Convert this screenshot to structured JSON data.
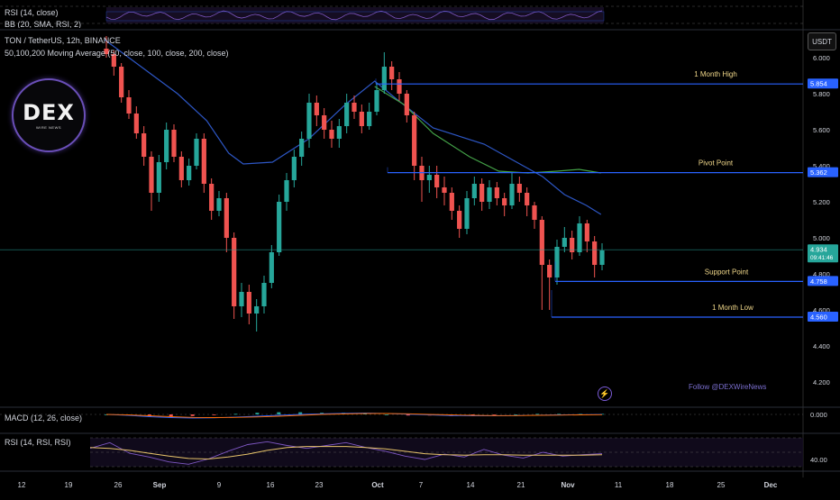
{
  "header": {
    "rsi_top_label": "RSI (14, close)",
    "bb_label": "BB (20, SMA, RSI, 2)",
    "symbol_line": "TON / TetherUS, 12h, BINANCE",
    "ma_line": "50,100,200 Moving Average (50, close, 100, close, 200, close)",
    "unit_button": "USDT"
  },
  "logo": {
    "text": "DEX",
    "subtitle": "WIRE NEWS"
  },
  "watermark": {
    "follow": "Follow @DEXWireNews",
    "bolt_icon": "lightning-bolt-icon"
  },
  "colors": {
    "up": "#26a69a",
    "down": "#ef5350",
    "level_line": "#2962ff",
    "ma_blue": "#2d56c4",
    "ma_green": "#43a047",
    "level_label": "#f0d78a",
    "price_now": "#26a69a"
  },
  "chart_data": [
    {
      "type": "candlestick",
      "title": "TON / TetherUS, 12h, BINANCE",
      "y_axis": {
        "ticks": [
          "6.000",
          "5.800",
          "5.600",
          "5.400",
          "5.200",
          "5.000",
          "4.800",
          "4.600",
          "4.400",
          "4.200"
        ],
        "min": 4.2,
        "max": 6.0
      },
      "x_axis": {
        "ticks": [
          "12",
          "19",
          "26",
          "Sep",
          "9",
          "16",
          "23",
          "Oct",
          "7",
          "14",
          "21",
          "Nov",
          "11",
          "18",
          "25",
          "Dec"
        ]
      },
      "price_tags": [
        {
          "label": "5.854",
          "value": 5.854,
          "color": "#2962ff"
        },
        {
          "label": "5.362",
          "value": 5.362,
          "color": "#2962ff"
        },
        {
          "label": "4.934",
          "sublabel": "09:41:46",
          "value": 4.934,
          "color": "#26a69a"
        },
        {
          "label": "4.758",
          "value": 4.758,
          "color": "#2962ff"
        },
        {
          "label": "4.560",
          "value": 4.56,
          "color": "#2962ff"
        }
      ],
      "levels": [
        {
          "name": "1 Month High",
          "value": 5.854,
          "start": "Sep 29"
        },
        {
          "name": "Pivot Point",
          "value": 5.362,
          "start": "Oct 1"
        },
        {
          "name": "Support Point",
          "value": 4.758,
          "start": "Oct 25"
        },
        {
          "name": "1 Month Low",
          "value": 4.56,
          "start": "Oct 24"
        }
      ],
      "current_price": 4.934,
      "moving_averages": [
        {
          "name": "MA 50",
          "color": "#2d56c4",
          "points": [
            [
              0,
              6.1
            ],
            [
              5,
              5.95
            ],
            [
              10,
              5.8
            ],
            [
              14,
              5.65
            ],
            [
              17,
              5.47
            ],
            [
              19,
              5.41
            ],
            [
              23,
              5.42
            ],
            [
              28,
              5.55
            ],
            [
              33,
              5.74
            ],
            [
              37,
              5.87
            ],
            [
              40,
              5.77
            ],
            [
              45,
              5.61
            ],
            [
              52,
              5.52
            ],
            [
              56,
              5.43
            ],
            [
              60,
              5.34
            ],
            [
              63,
              5.24
            ],
            [
              66,
              5.18
            ],
            [
              68,
              5.13
            ]
          ]
        },
        {
          "name": "MA 100",
          "color": "#43a047",
          "points": [
            [
              37,
              5.84
            ],
            [
              41,
              5.74
            ],
            [
              45,
              5.58
            ],
            [
              50,
              5.45
            ],
            [
              54,
              5.37
            ],
            [
              58,
              5.36
            ],
            [
              62,
              5.37
            ],
            [
              65,
              5.38
            ],
            [
              68,
              5.36
            ]
          ]
        }
      ],
      "candles": [
        [
          6.05,
          6.02,
          6.12,
          6.0
        ],
        [
          6.02,
          5.95,
          6.04,
          5.9
        ],
        [
          5.95,
          5.78,
          5.97,
          5.75
        ],
        [
          5.78,
          5.69,
          5.82,
          5.66
        ],
        [
          5.69,
          5.58,
          5.73,
          5.55
        ],
        [
          5.58,
          5.45,
          5.62,
          5.4
        ],
        [
          5.45,
          5.25,
          5.48,
          5.15
        ],
        [
          5.25,
          5.42,
          5.46,
          5.2
        ],
        [
          5.42,
          5.6,
          5.64,
          5.38
        ],
        [
          5.6,
          5.45,
          5.63,
          5.42
        ],
        [
          5.45,
          5.32,
          5.48,
          5.28
        ],
        [
          5.32,
          5.4,
          5.44,
          5.29
        ],
        [
          5.4,
          5.55,
          5.58,
          5.38
        ],
        [
          5.55,
          5.3,
          5.58,
          5.25
        ],
        [
          5.3,
          5.15,
          5.33,
          5.1
        ],
        [
          5.15,
          5.22,
          5.26,
          5.12
        ],
        [
          5.22,
          5.0,
          5.25,
          4.92
        ],
        [
          5.0,
          4.62,
          5.03,
          4.55
        ],
        [
          4.62,
          4.7,
          4.75,
          4.56
        ],
        [
          4.7,
          4.58,
          4.74,
          4.52
        ],
        [
          4.58,
          4.62,
          4.66,
          4.48
        ],
        [
          4.62,
          4.75,
          4.79,
          4.58
        ],
        [
          4.75,
          4.92,
          4.96,
          4.72
        ],
        [
          4.92,
          5.2,
          5.24,
          4.9
        ],
        [
          5.2,
          5.32,
          5.36,
          5.15
        ],
        [
          5.32,
          5.45,
          5.49,
          5.28
        ],
        [
          5.45,
          5.55,
          5.59,
          5.4
        ],
        [
          5.55,
          5.75,
          5.8,
          5.5
        ],
        [
          5.75,
          5.68,
          5.79,
          5.62
        ],
        [
          5.68,
          5.6,
          5.72,
          5.55
        ],
        [
          5.6,
          5.55,
          5.65,
          5.5
        ],
        [
          5.55,
          5.62,
          5.66,
          5.5
        ],
        [
          5.62,
          5.75,
          5.8,
          5.58
        ],
        [
          5.75,
          5.7,
          5.79,
          5.66
        ],
        [
          5.7,
          5.62,
          5.74,
          5.58
        ],
        [
          5.62,
          5.7,
          5.75,
          5.6
        ],
        [
          5.7,
          5.82,
          5.86,
          5.68
        ],
        [
          5.82,
          5.95,
          6.03,
          5.8
        ],
        [
          5.95,
          5.88,
          5.98,
          5.82
        ],
        [
          5.88,
          5.8,
          5.92,
          5.76
        ],
        [
          5.8,
          5.68,
          5.82,
          5.64
        ],
        [
          5.68,
          5.4,
          5.7,
          5.32
        ],
        [
          5.4,
          5.32,
          5.45,
          5.2
        ],
        [
          5.32,
          5.35,
          5.4,
          5.25
        ],
        [
          5.35,
          5.28,
          5.4,
          5.22
        ],
        [
          5.28,
          5.25,
          5.34,
          5.18
        ],
        [
          5.25,
          5.15,
          5.28,
          5.1
        ],
        [
          5.15,
          5.05,
          5.18,
          5.0
        ],
        [
          5.05,
          5.22,
          5.26,
          5.02
        ],
        [
          5.22,
          5.3,
          5.34,
          5.18
        ],
        [
          5.3,
          5.2,
          5.33,
          5.15
        ],
        [
          5.2,
          5.28,
          5.32,
          5.16
        ],
        [
          5.28,
          5.22,
          5.31,
          5.18
        ],
        [
          5.22,
          5.18,
          5.25,
          5.12
        ],
        [
          5.18,
          5.3,
          5.36,
          5.16
        ],
        [
          5.3,
          5.25,
          5.34,
          5.2
        ],
        [
          5.25,
          5.18,
          5.28,
          5.12
        ],
        [
          5.18,
          5.1,
          5.2,
          5.05
        ],
        [
          5.1,
          4.85,
          5.12,
          4.6
        ],
        [
          4.85,
          4.78,
          4.88,
          4.6
        ],
        [
          4.78,
          4.95,
          4.99,
          4.74
        ],
        [
          4.95,
          5.0,
          5.06,
          4.92
        ],
        [
          5.0,
          4.92,
          5.04,
          4.88
        ],
        [
          4.92,
          5.08,
          5.12,
          4.9
        ],
        [
          5.08,
          4.98,
          5.1,
          4.92
        ],
        [
          4.98,
          4.85,
          5.01,
          4.78
        ],
        [
          4.85,
          4.93,
          4.97,
          4.82
        ]
      ],
      "candle_note": "each candle: [open, close, high, low]"
    },
    {
      "type": "line",
      "title": "MACD (12, 26, close)",
      "y_axis": {
        "ticks": [
          "0.000"
        ]
      },
      "series": [
        {
          "name": "MACD",
          "values": [
            0.0,
            -0.04,
            -0.1,
            -0.14,
            -0.16,
            -0.15,
            -0.12,
            -0.08,
            -0.04,
            0.0,
            0.03,
            0.05,
            0.06,
            0.04,
            0.01,
            -0.02,
            -0.05,
            -0.06,
            -0.06,
            -0.05,
            -0.03,
            -0.02,
            -0.01,
            0.0
          ]
        },
        {
          "name": "Signal",
          "values": [
            0.0,
            -0.02,
            -0.06,
            -0.1,
            -0.13,
            -0.14,
            -0.13,
            -0.11,
            -0.08,
            -0.04,
            0.0,
            0.02,
            0.04,
            0.04,
            0.03,
            0.0,
            -0.02,
            -0.04,
            -0.05,
            -0.05,
            -0.04,
            -0.03,
            -0.02,
            -0.01
          ]
        }
      ]
    },
    {
      "type": "line",
      "title": "RSI (14, RSI, RSI)",
      "y_axis": {
        "ticks": [
          "40.00"
        ]
      },
      "series": [
        {
          "name": "RSI",
          "values": [
            58,
            70,
            48,
            40,
            30,
            25,
            36,
            52,
            66,
            72,
            64,
            58,
            64,
            70,
            60,
            52,
            42,
            35,
            46,
            40,
            56,
            44,
            38,
            50,
            42,
            45,
            47
          ]
        },
        {
          "name": "RSI MA",
          "values": [
            60,
            58,
            54,
            48,
            42,
            37,
            36,
            40,
            46,
            54,
            60,
            62,
            62,
            62,
            60,
            57,
            52,
            47,
            45,
            44,
            45,
            45,
            44,
            44,
            44,
            44,
            45
          ]
        }
      ]
    }
  ]
}
